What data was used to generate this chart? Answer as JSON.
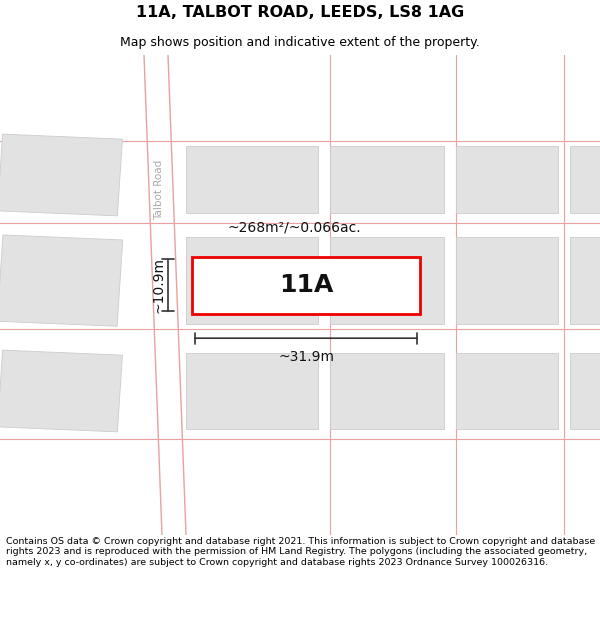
{
  "title": "11A, TALBOT ROAD, LEEDS, LS8 1AG",
  "subtitle": "Map shows position and indicative extent of the property.",
  "footer": "Contains OS data © Crown copyright and database right 2021. This information is subject to Crown copyright and database rights 2023 and is reproduced with the permission of HM Land Registry. The polygons (including the associated geometry, namely x, y co-ordinates) are subject to Crown copyright and database rights 2023 Ordnance Survey 100026316.",
  "area_label": "~268m²/~0.066ac.",
  "width_label": "~31.9m",
  "height_label": "~10.9m",
  "property_label": "11A",
  "road_label": "Talbot Road",
  "background_color": "#ffffff",
  "map_background": "#f8f8f8",
  "block_color": "#e2e2e2",
  "block_edge_color": "#cccccc",
  "road_line_color": "#e8a0a0",
  "property_rect_color": "#ee0000",
  "property_fill": "#ffffff",
  "dim_line_color": "#333333",
  "title_fontsize": 11.5,
  "subtitle_fontsize": 9,
  "footer_fontsize": 6.8,
  "label_fontsize": 10,
  "prop_label_fontsize": 18
}
